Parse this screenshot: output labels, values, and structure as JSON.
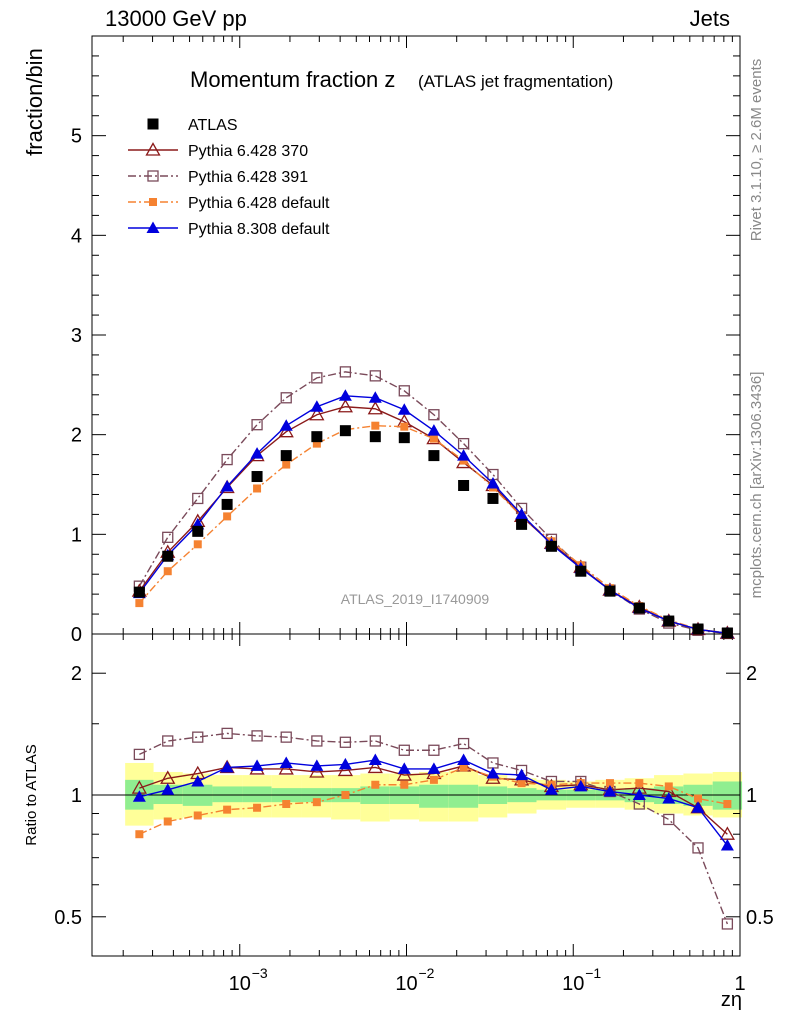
{
  "header": {
    "left": "13000 GeV pp",
    "right": "Jets"
  },
  "side_labels": {
    "rivet": "Rivet 3.1.10, ≥ 2.6M events",
    "mcplots": "mcplots.cern.ch [arXiv:1306.3436]"
  },
  "chart_data": {
    "type": "scatter",
    "title": "Momentum fraction z",
    "subtitle": "(ATLAS jet fragmentation)",
    "watermark": "ATLAS_2019_I1740909",
    "xlabel": "zη",
    "ylabel": "fraction/bin",
    "ratio_ylabel": "Ratio to ATLAS",
    "x_scale": "log",
    "xlim": [
      0.00013,
      1.0
    ],
    "ylim": [
      0,
      6.0
    ],
    "ratio_ylim": [
      0.4,
      2.5
    ],
    "ratio_scale": "log",
    "x_tick_labels": [
      "10",
      "10",
      "10",
      "1"
    ],
    "x_tick_exponents": [
      "−3",
      "−2",
      "−1",
      ""
    ],
    "y_tick_labels": [
      "0",
      "1",
      "2",
      "3",
      "4",
      "5"
    ],
    "ratio_tick_labels": [
      "0.5",
      "1",
      "2"
    ],
    "legend_position": "top-left",
    "x": [
      0.00025,
      0.00037,
      0.00056,
      0.00084,
      0.00127,
      0.0019,
      0.0029,
      0.0043,
      0.0065,
      0.0097,
      0.0146,
      0.022,
      0.033,
      0.049,
      0.074,
      0.111,
      0.166,
      0.249,
      0.374,
      0.56,
      0.84
    ],
    "series": [
      {
        "name": "ATLAS",
        "marker": "square-filled",
        "color": "#000000",
        "line": "none",
        "values": [
          0.42,
          0.78,
          1.03,
          1.3,
          1.58,
          1.79,
          1.98,
          2.04,
          1.98,
          1.97,
          1.79,
          1.49,
          1.36,
          1.1,
          0.88,
          0.63,
          0.43,
          0.26,
          0.13,
          0.05,
          0.01
        ]
      },
      {
        "name": "Pythia 6.428 370",
        "marker": "triangle-open",
        "color": "#8b1a1a",
        "line": "solid",
        "values": [
          0.43,
          0.82,
          1.13,
          1.47,
          1.79,
          2.03,
          2.2,
          2.28,
          2.26,
          2.13,
          1.96,
          1.72,
          1.49,
          1.18,
          0.91,
          0.67,
          0.44,
          0.27,
          0.13,
          0.046,
          0.008
        ]
      },
      {
        "name": "Pythia 6.428 391",
        "marker": "square-open",
        "color": "#7a4a5a",
        "line": "dashdot",
        "values": [
          0.48,
          0.97,
          1.36,
          1.75,
          2.1,
          2.37,
          2.57,
          2.63,
          2.59,
          2.44,
          2.2,
          1.91,
          1.6,
          1.26,
          0.95,
          0.67,
          0.44,
          0.25,
          0.11,
          0.037,
          0.005
        ]
      },
      {
        "name": "Pythia 6.428 default",
        "marker": "square-filled-small",
        "color": "#f58231",
        "line": "dashdot",
        "values": [
          0.31,
          0.63,
          0.9,
          1.18,
          1.46,
          1.7,
          1.91,
          2.05,
          2.09,
          2.08,
          1.96,
          1.74,
          1.47,
          1.18,
          0.93,
          0.69,
          0.46,
          0.28,
          0.14,
          0.049,
          0.0095
        ]
      },
      {
        "name": "Pythia 8.308 default",
        "marker": "triangle-filled",
        "color": "#0000dd",
        "line": "solid",
        "values": [
          0.41,
          0.79,
          1.1,
          1.48,
          1.81,
          2.09,
          2.28,
          2.39,
          2.37,
          2.25,
          2.04,
          1.79,
          1.51,
          1.2,
          0.9,
          0.66,
          0.44,
          0.26,
          0.13,
          0.046,
          0.0075
        ]
      }
    ],
    "ratio_series": [
      {
        "name": "Pythia 6.428 370",
        "values": [
          1.04,
          1.1,
          1.13,
          1.17,
          1.16,
          1.16,
          1.14,
          1.15,
          1.17,
          1.12,
          1.13,
          1.18,
          1.1,
          1.09,
          1.05,
          1.06,
          1.03,
          1.04,
          1.02,
          0.93,
          0.8
        ]
      },
      {
        "name": "Pythia 6.428 391",
        "values": [
          1.26,
          1.36,
          1.39,
          1.42,
          1.4,
          1.39,
          1.36,
          1.35,
          1.36,
          1.29,
          1.29,
          1.34,
          1.2,
          1.15,
          1.08,
          1.08,
          1.02,
          0.95,
          0.87,
          0.74,
          0.48
        ]
      },
      {
        "name": "Pythia 6.428 default",
        "values": [
          0.8,
          0.86,
          0.89,
          0.92,
          0.93,
          0.95,
          0.96,
          1.0,
          1.06,
          1.06,
          1.09,
          1.17,
          1.11,
          1.07,
          1.06,
          1.07,
          1.07,
          1.07,
          1.05,
          0.98,
          0.95
        ]
      },
      {
        "name": "Pythia 8.308 default",
        "values": [
          0.99,
          1.03,
          1.08,
          1.17,
          1.18,
          1.2,
          1.18,
          1.19,
          1.22,
          1.16,
          1.16,
          1.22,
          1.13,
          1.12,
          1.03,
          1.05,
          1.02,
          1.0,
          0.98,
          0.93,
          0.75
        ]
      }
    ],
    "uncertainty_bands": {
      "inner_color": "#90ee90",
      "outer_color": "#ffff99",
      "inner": [
        [
          0.92,
          1.09
        ],
        [
          0.95,
          1.06
        ],
        [
          0.94,
          1.06
        ],
        [
          0.96,
          1.05
        ],
        [
          0.96,
          1.05
        ],
        [
          0.96,
          1.04
        ],
        [
          0.96,
          1.04
        ],
        [
          0.96,
          1.04
        ],
        [
          0.95,
          1.05
        ],
        [
          0.95,
          1.05
        ],
        [
          0.93,
          1.06
        ],
        [
          0.93,
          1.06
        ],
        [
          0.95,
          1.05
        ],
        [
          0.96,
          1.04
        ],
        [
          0.97,
          1.03
        ],
        [
          0.97,
          1.03
        ],
        [
          0.97,
          1.03
        ],
        [
          0.96,
          1.04
        ],
        [
          0.95,
          1.05
        ],
        [
          0.94,
          1.06
        ],
        [
          0.92,
          1.08
        ]
      ],
      "outer": [
        [
          0.84,
          1.2
        ],
        [
          0.87,
          1.14
        ],
        [
          0.88,
          1.13
        ],
        [
          0.88,
          1.12
        ],
        [
          0.88,
          1.12
        ],
        [
          0.88,
          1.12
        ],
        [
          0.88,
          1.12
        ],
        [
          0.87,
          1.12
        ],
        [
          0.86,
          1.13
        ],
        [
          0.87,
          1.13
        ],
        [
          0.86,
          1.14
        ],
        [
          0.86,
          1.15
        ],
        [
          0.88,
          1.12
        ],
        [
          0.9,
          1.1
        ],
        [
          0.92,
          1.09
        ],
        [
          0.93,
          1.08
        ],
        [
          0.93,
          1.09
        ],
        [
          0.92,
          1.1
        ],
        [
          0.9,
          1.12
        ],
        [
          0.89,
          1.13
        ],
        [
          0.88,
          1.14
        ]
      ]
    }
  }
}
